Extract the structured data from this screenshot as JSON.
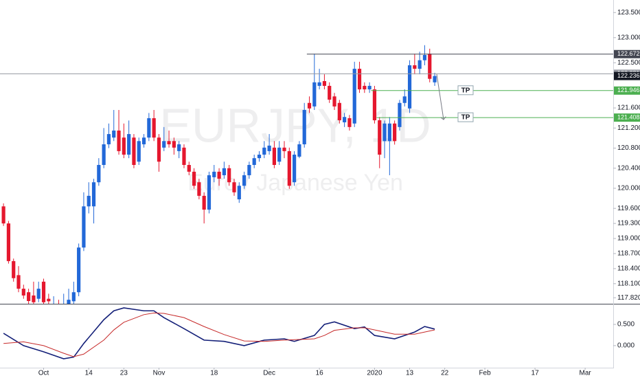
{
  "chart_data": [
    {
      "type": "candlestick",
      "title": "EURJPY, 1D",
      "subtitle": "Euro / Japanese Yen",
      "up_color": "#2268d8",
      "down_color": "#e5172e",
      "xlim": [
        -0.7,
        121.6
      ],
      "ylim": [
        117.7,
        123.75
      ],
      "yticks": [
        {
          "value": 123.5,
          "label": "123.500"
        },
        {
          "value": 123,
          "label": "123.000"
        },
        {
          "value": 122.5,
          "label": "122.500"
        },
        {
          "value": 121.6,
          "label": "121.600"
        },
        {
          "value": 121.2,
          "label": "121.200"
        },
        {
          "value": 120.8,
          "label": "120.800"
        },
        {
          "value": 120.4,
          "label": "120.400"
        },
        {
          "value": 120,
          "label": "120.000"
        },
        {
          "value": 119.6,
          "label": "119.600"
        },
        {
          "value": 119.3,
          "label": "119.300"
        },
        {
          "value": 119,
          "label": "119.000"
        },
        {
          "value": 118.7,
          "label": "118.700"
        },
        {
          "value": 118.4,
          "label": "118.400"
        },
        {
          "value": 118.1,
          "label": "118.100"
        },
        {
          "value": 117.82,
          "label": "117.820"
        }
      ],
      "candles": [
        [
          119.64,
          119.7,
          119.25,
          119.3
        ],
        [
          119.3,
          119.35,
          118.5,
          118.55
        ],
        [
          118.55,
          118.6,
          118.14,
          118.21
        ],
        [
          118.27,
          118.45,
          117.93,
          118.0
        ],
        [
          118.0,
          118.08,
          117.8,
          117.865
        ],
        [
          117.93,
          118.0,
          117.7,
          117.755
        ],
        [
          117.865,
          118.14,
          117.65,
          117.73
        ],
        [
          117.8,
          118.14,
          117.73,
          118.0
        ],
        [
          118.14,
          118.2,
          117.65,
          117.73
        ],
        [
          117.8,
          117.9,
          117.6,
          117.75
        ],
        [
          117.55,
          117.85,
          117.45,
          117.7
        ],
        [
          117.7,
          117.78,
          117.4,
          117.5
        ],
        [
          117.45,
          117.9,
          117.4,
          117.6
        ],
        [
          117.6,
          118.0,
          117.55,
          117.78
        ],
        [
          117.75,
          118.14,
          117.7,
          117.93
        ],
        [
          117.93,
          118.9,
          117.85,
          118.82
        ],
        [
          118.82,
          119.92,
          118.75,
          119.64
        ],
        [
          119.64,
          120.12,
          119.5,
          119.85
        ],
        [
          119.64,
          120.19,
          119.3,
          120.12
        ],
        [
          120.12,
          120.6,
          120.05,
          120.465
        ],
        [
          120.465,
          121.2,
          120.4,
          120.876
        ],
        [
          120.876,
          121.29,
          120.8,
          121.08
        ],
        [
          121.01,
          121.56,
          120.94,
          121.15
        ],
        [
          121.15,
          121.56,
          120.67,
          120.74
        ],
        [
          121.01,
          121.29,
          120.6,
          120.67
        ],
        [
          120.67,
          121.35,
          120.6,
          121.08
        ],
        [
          121.01,
          121.08,
          120.4,
          120.465
        ],
        [
          120.53,
          121.01,
          120.465,
          120.94
        ],
        [
          120.876,
          121.08,
          120.81,
          121.01
        ],
        [
          121.01,
          121.5,
          120.94,
          121.396
        ],
        [
          121.396,
          121.56,
          120.94,
          121.01
        ],
        [
          121.01,
          121.08,
          120.33,
          120.53
        ],
        [
          120.81,
          121.22,
          120.74,
          120.94
        ],
        [
          120.94,
          121.15,
          120.81,
          120.876
        ],
        [
          120.94,
          121.01,
          120.67,
          120.81
        ],
        [
          120.74,
          120.94,
          120.6,
          120.876
        ],
        [
          120.81,
          120.876,
          120.4,
          120.465
        ],
        [
          120.465,
          120.53,
          120.26,
          120.33
        ],
        [
          120.33,
          120.4,
          119.99,
          120.05
        ],
        [
          120.12,
          120.19,
          119.78,
          119.85
        ],
        [
          119.85,
          119.92,
          119.3,
          119.575
        ],
        [
          119.575,
          120.33,
          119.5,
          120.26
        ],
        [
          120.22,
          120.465,
          120.12,
          120.33
        ],
        [
          120.33,
          120.4,
          120.05,
          120.19
        ],
        [
          120.26,
          120.53,
          120.19,
          120.4
        ],
        [
          120.4,
          120.465,
          120.05,
          120.12
        ],
        [
          120.12,
          120.19,
          119.85,
          119.92
        ],
        [
          119.78,
          120.12,
          119.71,
          120.05
        ],
        [
          120.05,
          120.33,
          119.99,
          120.26
        ],
        [
          120.26,
          120.53,
          120.19,
          120.465
        ],
        [
          120.465,
          120.67,
          120.4,
          120.6
        ],
        [
          120.6,
          120.74,
          120.53,
          120.67
        ],
        [
          120.67,
          120.94,
          120.6,
          120.81
        ],
        [
          120.74,
          121.08,
          120.67,
          120.85
        ],
        [
          120.81,
          120.94,
          120.4,
          120.465
        ],
        [
          120.53,
          120.94,
          120.465,
          120.81
        ],
        [
          120.81,
          120.94,
          120.6,
          120.74
        ],
        [
          120.74,
          120.81,
          119.99,
          120.05
        ],
        [
          120.12,
          120.74,
          120.05,
          120.67
        ],
        [
          120.63,
          120.94,
          120.6,
          120.876
        ],
        [
          120.876,
          121.7,
          120.81,
          121.56
        ],
        [
          121.7,
          121.83,
          121.5,
          121.59
        ],
        [
          121.63,
          122.68,
          121.56,
          122.11
        ],
        [
          122.04,
          122.38,
          121.97,
          122.11
        ],
        [
          122.135,
          122.27,
          121.97,
          122.04
        ],
        [
          122.04,
          122.11,
          121.7,
          121.765
        ],
        [
          121.83,
          121.9,
          121.56,
          121.63
        ],
        [
          121.7,
          121.76,
          121.29,
          121.355
        ],
        [
          121.314,
          121.5,
          121.22,
          121.42
        ],
        [
          121.396,
          121.46,
          121.15,
          121.22
        ],
        [
          121.29,
          122.52,
          121.22,
          122.38
        ],
        [
          122.38,
          122.52,
          121.9,
          121.97
        ],
        [
          122.04,
          122.11,
          121.9,
          121.97
        ],
        [
          121.97,
          122.11,
          121.9,
          122.04
        ],
        [
          121.97,
          122.04,
          121.29,
          121.355
        ],
        [
          121.355,
          121.42,
          120.4,
          120.67
        ],
        [
          120.94,
          121.35,
          120.6,
          121.29
        ],
        [
          120.94,
          121.42,
          120.26,
          121.29
        ],
        [
          121.29,
          121.35,
          120.87,
          120.94
        ],
        [
          121.22,
          121.76,
          121.15,
          121.7
        ],
        [
          121.7,
          121.97,
          121.63,
          121.83
        ],
        [
          121.59,
          122.55,
          121.5,
          122.45
        ],
        [
          122.45,
          122.68,
          122.27,
          122.38
        ],
        [
          122.38,
          122.72,
          122.27,
          122.55
        ],
        [
          122.55,
          122.85,
          122.45,
          122.655
        ],
        [
          122.68,
          122.78,
          122.11,
          122.18
        ],
        [
          122.11,
          122.3,
          122.04,
          122.236
        ]
      ],
      "levels": [
        {
          "value": 122.672,
          "color": "#434651",
          "from": 60.5
        },
        {
          "value": 122.281,
          "color": "#9598a1",
          "from": -0.7
        },
        {
          "value": 121.946,
          "color": "#4caf50",
          "from": 73.3,
          "label": "TP"
        },
        {
          "value": 121.408,
          "color": "#4caf50",
          "from": 74.4,
          "label": "TP"
        }
      ]
    },
    {
      "type": "line",
      "xlim": [
        -0.7,
        121.6
      ],
      "ylim": [
        -0.52,
        0.97
      ],
      "yticks": [
        {
          "value": 0.5,
          "label": "0.500"
        },
        {
          "value": 0,
          "label": "0.000"
        }
      ],
      "xticks": [
        {
          "value": 8,
          "label": "Oct"
        },
        {
          "value": 17,
          "label": "14"
        },
        {
          "value": 24,
          "label": "23"
        },
        {
          "value": 31,
          "label": "Nov"
        },
        {
          "value": 42,
          "label": "18"
        },
        {
          "value": 53,
          "label": "Dec"
        },
        {
          "value": 63,
          "label": "16"
        },
        {
          "value": 74,
          "label": "2020"
        },
        {
          "value": 81,
          "label": "13"
        },
        {
          "value": 88,
          "label": "22"
        },
        {
          "value": 96,
          "label": "Feb"
        },
        {
          "value": 106,
          "label": "17"
        },
        {
          "value": 116,
          "label": "Mar"
        }
      ],
      "x": [
        0,
        4,
        8,
        12,
        14,
        16,
        20,
        22,
        24,
        28,
        30,
        32,
        36,
        40,
        44,
        48,
        52,
        56,
        58,
        62,
        64,
        66,
        70,
        72,
        74,
        78,
        82,
        84,
        86
      ],
      "series": [
        {
          "color": "#131f78",
          "values": [
            0.29,
            0.0,
            -0.145,
            -0.31,
            -0.27,
            0.05,
            0.61,
            0.82,
            0.89,
            0.82,
            0.82,
            0.66,
            0.4,
            0.13,
            0.1,
            0.0,
            0.13,
            0.16,
            0.1,
            0.24,
            0.5,
            0.56,
            0.4,
            0.44,
            0.24,
            0.16,
            0.32,
            0.45,
            0.39
          ]
        },
        {
          "color": "#c62828",
          "values": [
            0.05,
            0.09,
            0.0,
            -0.18,
            -0.26,
            -0.2,
            0.13,
            0.37,
            0.55,
            0.73,
            0.77,
            0.76,
            0.66,
            0.45,
            0.26,
            0.11,
            0.1,
            0.13,
            0.14,
            0.16,
            0.24,
            0.36,
            0.42,
            0.42,
            0.37,
            0.27,
            0.27,
            0.32,
            0.37
          ]
        }
      ]
    }
  ]
}
